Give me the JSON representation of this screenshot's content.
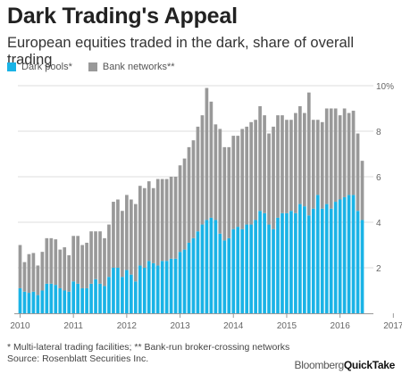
{
  "header": {
    "title": "Dark Trading's Appeal",
    "subtitle": "European equities traded in the dark, share of overall trading"
  },
  "footer": {
    "note": "* Multi-lateral trading facilities; ** Bank-run broker-crossing networks",
    "source": "Source: Rosenblatt Securities Inc.",
    "brand_a": "Bloomberg",
    "brand_b": "QuickTake"
  },
  "chart_data": {
    "type": "bar",
    "stacked": true,
    "title": "Dark Trading's Appeal",
    "subtitle": "European equities traded in the dark, share of overall trading",
    "xlabel": "",
    "ylabel": "",
    "ylim": [
      0,
      10
    ],
    "yticks": [
      2,
      4,
      6,
      8,
      10
    ],
    "ytick_labels": [
      "2",
      "4",
      "6",
      "8",
      "10%"
    ],
    "xtick_labels": [
      "2010",
      "2011",
      "2012",
      "2013",
      "2014",
      "2015",
      "2016",
      "2017"
    ],
    "grid": true,
    "legend": "top-left",
    "frequency": "monthly",
    "start": "2010-01",
    "colors": {
      "dark_pools": "#1ab3e6",
      "bank_networks": "#999999",
      "grid": "#dddddd",
      "axis": "#999999"
    },
    "series": [
      {
        "name": "Dark pools*",
        "values": [
          1.1,
          0.95,
          0.9,
          0.95,
          0.8,
          1.0,
          1.3,
          1.3,
          1.25,
          1.1,
          1.0,
          0.95,
          1.4,
          1.3,
          1.1,
          1.1,
          1.3,
          1.5,
          1.3,
          1.2,
          1.6,
          2.0,
          2.0,
          1.6,
          1.9,
          1.7,
          1.4,
          2.1,
          2.0,
          2.3,
          2.2,
          2.1,
          2.3,
          2.3,
          2.4,
          2.4,
          2.7,
          2.8,
          3.1,
          3.3,
          3.6,
          3.9,
          4.1,
          4.2,
          4.1,
          3.5,
          3.2,
          3.3,
          3.7,
          3.8,
          3.7,
          3.9,
          3.9,
          4.1,
          4.5,
          4.4,
          3.9,
          3.7,
          4.2,
          4.4,
          4.4,
          4.5,
          4.4,
          4.8,
          4.7,
          4.3,
          4.6,
          5.2,
          4.6,
          4.8,
          4.6,
          4.9,
          5.0,
          5.1,
          5.2,
          5.2,
          4.5,
          4.1
        ]
      },
      {
        "name": "Bank networks**",
        "values": [
          1.9,
          1.3,
          1.7,
          1.7,
          1.3,
          1.7,
          2.0,
          2.0,
          2.0,
          1.7,
          1.9,
          1.6,
          2.0,
          2.1,
          1.9,
          2.0,
          2.3,
          2.1,
          2.3,
          2.1,
          2.3,
          2.9,
          3.0,
          2.9,
          3.3,
          3.3,
          3.4,
          3.5,
          3.5,
          3.5,
          3.3,
          3.8,
          3.6,
          3.6,
          3.6,
          3.6,
          3.8,
          4.0,
          4.2,
          4.3,
          4.6,
          4.8,
          5.8,
          5.1,
          4.2,
          4.6,
          4.1,
          4.0,
          4.1,
          4.0,
          4.4,
          4.3,
          4.5,
          4.4,
          4.6,
          4.3,
          4.0,
          4.5,
          4.5,
          4.3,
          4.1,
          4.0,
          4.4,
          4.3,
          4.1,
          5.4,
          3.9,
          3.3,
          3.8,
          4.2,
          4.4,
          4.1,
          3.7,
          3.9,
          3.6,
          3.7,
          3.4,
          2.6
        ]
      }
    ]
  }
}
